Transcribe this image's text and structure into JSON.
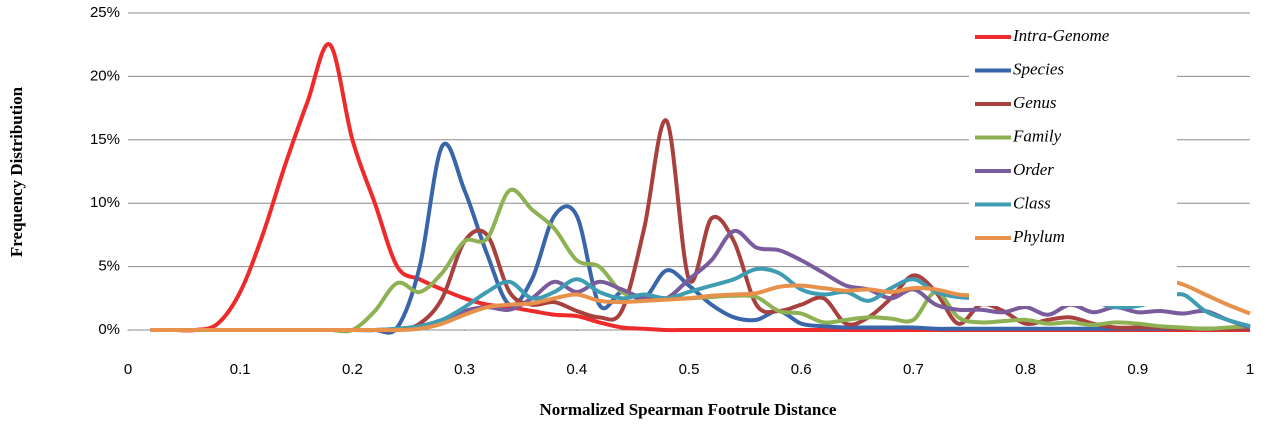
{
  "chart_data": {
    "type": "line",
    "x_label": "Normalized Spearman Footrule Distance",
    "y_label": "Frequency Distribution",
    "x": [
      0.02,
      0.04,
      0.06,
      0.08,
      0.1,
      0.12,
      0.14,
      0.16,
      0.18,
      0.2,
      0.22,
      0.24,
      0.26,
      0.28,
      0.3,
      0.32,
      0.34,
      0.36,
      0.38,
      0.4,
      0.42,
      0.44,
      0.46,
      0.48,
      0.5,
      0.52,
      0.54,
      0.56,
      0.58,
      0.6,
      0.62,
      0.64,
      0.66,
      0.68,
      0.7,
      0.72,
      0.74,
      0.76,
      0.78,
      0.8,
      0.82,
      0.84,
      0.86,
      0.88,
      0.9,
      0.92,
      0.94,
      0.96,
      0.98,
      1.0
    ],
    "series": [
      {
        "name": "Intra-Genome",
        "color": "#ee2a2a",
        "values": [
          0,
          0,
          0,
          0.5,
          3,
          7.5,
          13,
          18,
          22.5,
          15,
          10,
          5,
          4,
          3.2,
          2.5,
          2,
          1.8,
          1.5,
          1.2,
          1.1,
          0.6,
          0.2,
          0.1,
          0,
          0,
          0,
          0,
          0,
          0,
          0,
          0,
          0,
          0,
          0,
          0,
          0,
          0,
          0,
          0,
          0,
          0,
          0,
          0,
          0,
          0,
          0,
          0,
          0,
          0,
          0
        ]
      },
      {
        "name": "Species",
        "color": "#3966ab",
        "values": [
          0,
          0,
          0,
          0,
          0,
          0,
          0,
          0,
          0,
          0,
          0,
          0.2,
          5,
          14.5,
          11,
          6,
          2,
          4,
          9,
          9,
          2,
          3,
          2.5,
          4.7,
          3.5,
          2,
          1,
          0.8,
          1.5,
          0.5,
          0.3,
          0.2,
          0.2,
          0.2,
          0.2,
          0.1,
          0.1,
          0.1,
          0.1,
          0.1,
          0.1,
          0.1,
          0.1,
          0.1,
          0.1,
          0.1,
          0.1,
          0.1,
          0.1,
          0.1
        ]
      },
      {
        "name": "Genus",
        "color": "#a8403e",
        "values": [
          0,
          0,
          0,
          0,
          0,
          0,
          0,
          0,
          0,
          0,
          0,
          0,
          0.5,
          2.5,
          7,
          7.5,
          3,
          2,
          2.2,
          1.5,
          1,
          1.5,
          8,
          16.5,
          4,
          8.8,
          7,
          2,
          1.5,
          2,
          2.5,
          0.5,
          1,
          2.5,
          4.3,
          3,
          0.5,
          2,
          1.5,
          0.5,
          0.8,
          1,
          0.5,
          0.2,
          0.2,
          0.2,
          0.1,
          0.1,
          0.1,
          0.1
        ]
      },
      {
        "name": "Family",
        "color": "#8db153",
        "values": [
          0,
          0,
          0,
          0,
          0,
          0,
          0,
          0,
          0,
          0,
          1.5,
          3.7,
          3,
          4.5,
          7,
          7.2,
          11,
          9.5,
          8,
          5.5,
          5,
          3,
          2.7,
          2.5,
          2.5,
          2.6,
          2.7,
          2.6,
          1.5,
          1.3,
          0.6,
          0.8,
          1,
          0.9,
          0.8,
          3,
          1,
          0.6,
          0.7,
          0.8,
          0.5,
          0.6,
          0.4,
          0.6,
          0.5,
          0.3,
          0.2,
          0.1,
          0.2,
          0.3
        ]
      },
      {
        "name": "Order",
        "color": "#7a5c9c",
        "values": [
          0,
          0,
          0,
          0,
          0,
          0,
          0,
          0,
          0,
          0,
          0,
          0.1,
          0.3,
          0.8,
          1.5,
          1.8,
          1.6,
          2.5,
          3.8,
          3,
          3.8,
          3.2,
          2.5,
          2.5,
          4,
          5.5,
          7.8,
          6.5,
          6.3,
          5.5,
          4.5,
          3.5,
          3.2,
          2.5,
          3.2,
          2,
          1.6,
          1.6,
          1.4,
          1.8,
          1.2,
          2,
          1.4,
          1.8,
          1.4,
          1.5,
          1.3,
          1.5,
          0.8,
          0.2
        ]
      },
      {
        "name": "Class",
        "color": "#3e9cb3",
        "values": [
          0,
          0,
          0,
          0,
          0,
          0,
          0,
          0,
          0,
          0,
          0,
          0.1,
          0.3,
          0.8,
          1.8,
          3,
          3.8,
          2.5,
          3,
          4,
          3,
          2.5,
          2.8,
          2.5,
          3,
          3.5,
          4,
          4.8,
          4.5,
          3.2,
          2.8,
          3,
          2.3,
          3.3,
          4,
          3,
          2.6,
          2.5,
          2.5,
          2.4,
          2.6,
          3.2,
          2.3,
          1.8,
          1.9,
          2.4,
          2.8,
          1.5,
          0.8,
          0.3
        ]
      },
      {
        "name": "Phylum",
        "color": "#e8914a",
        "values": [
          0,
          0,
          0,
          0,
          0,
          0,
          0,
          0,
          0,
          0,
          0,
          0,
          0.1,
          0.5,
          1.2,
          1.8,
          2,
          2.1,
          2.5,
          2.8,
          2.3,
          2.2,
          2.3,
          2.4,
          2.5,
          2.7,
          2.8,
          2.9,
          3.4,
          3.5,
          3.3,
          3.1,
          3.2,
          3,
          3.3,
          3.2,
          2.8,
          2.7,
          2.6,
          2.5,
          2.7,
          2.8,
          3,
          3.4,
          4,
          4,
          3.6,
          2.8,
          2,
          1.3
        ]
      }
    ],
    "xlim": [
      0,
      1
    ],
    "xticks": [
      0,
      0.1,
      0.2,
      0.3,
      0.4,
      0.5,
      0.6,
      0.7,
      0.8,
      0.9,
      1
    ],
    "ylim": [
      0,
      25
    ],
    "yticks": [
      {
        "value": 0,
        "label": "0%"
      },
      {
        "value": 5,
        "label": "5%"
      },
      {
        "value": 10,
        "label": "10%"
      },
      {
        "value": 15,
        "label": "15%"
      },
      {
        "value": 20,
        "label": "20%"
      },
      {
        "value": 25,
        "label": "25%"
      }
    ],
    "grid": true,
    "legend": "right"
  }
}
